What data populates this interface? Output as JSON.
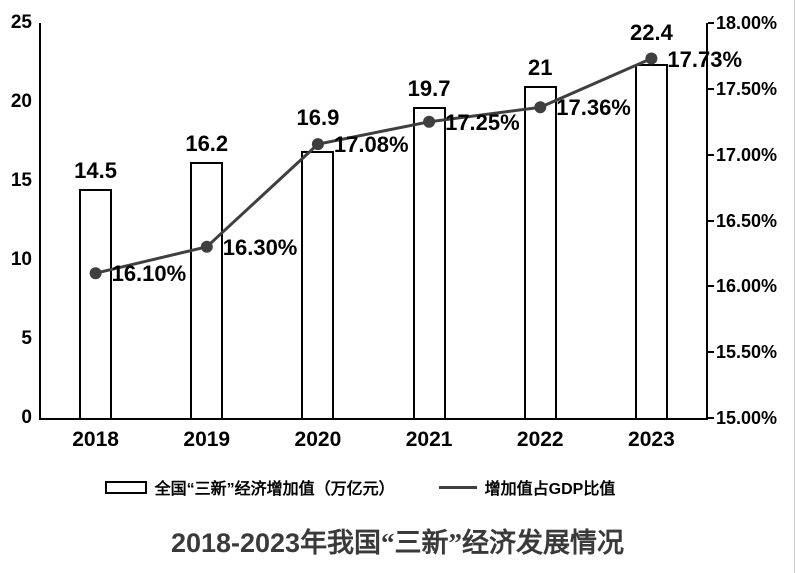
{
  "title": {
    "prefix": "2018-2023",
    "main": "年我国“三新”经济发展情况"
  },
  "chart_data": {
    "type": "combo",
    "title": "2018-2023年我国“三新”经济发展情况",
    "categories": [
      "2018",
      "2019",
      "2020",
      "2021",
      "2022",
      "2023"
    ],
    "series": [
      {
        "name": "全国“三新”经济增加值（万亿元）",
        "type": "bar",
        "axis": "left",
        "values": [
          14.5,
          16.2,
          16.9,
          19.7,
          21,
          22.4
        ],
        "labels": [
          "14.5",
          "16.2",
          "16.9",
          "19.7",
          "21",
          "22.4"
        ]
      },
      {
        "name": "增加值占GDP比值",
        "type": "line",
        "axis": "right",
        "values": [
          16.1,
          16.3,
          17.08,
          17.25,
          17.36,
          17.73
        ],
        "labels": [
          "16.10%",
          "16.30%",
          "17.08%",
          "17.25%",
          "17.36%",
          "17.73%"
        ]
      }
    ],
    "left_axis": {
      "min": 0,
      "max": 25,
      "step": 5,
      "ticks": [
        "0",
        "5",
        "10",
        "15",
        "20",
        "25"
      ]
    },
    "right_axis": {
      "min": 15,
      "max": 18,
      "step": 0.5,
      "ticks": [
        "15.00%",
        "15.50%",
        "16.00%",
        "16.50%",
        "17.00%",
        "17.50%",
        "18.00%"
      ]
    },
    "grid": "off",
    "legend_position": "bottom",
    "colors": {
      "bar_fill": "#ffffff",
      "bar_border": "#000000",
      "line": "#3f3f3f",
      "marker": "#3f3f3f",
      "text": "#000000",
      "title_text": "#3a3a3a"
    }
  }
}
